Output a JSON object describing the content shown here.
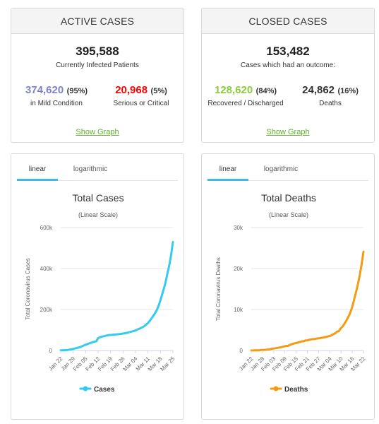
{
  "active": {
    "header": "ACTIVE CASES",
    "total": "395,588",
    "total_label": "Currently Infected Patients",
    "mild_value": "374,620",
    "mild_pct": "95%",
    "mild_label": "in Mild Condition",
    "serious_value": "20,968",
    "serious_pct": "5%",
    "serious_label": "Serious or Critical",
    "link": "Show Graph",
    "colors": {
      "mild": "#8080cc",
      "serious": "#ff0000"
    }
  },
  "closed": {
    "header": "CLOSED CASES",
    "total": "153,482",
    "total_label": "Cases which had an outcome:",
    "recovered_value": "128,620",
    "recovered_pct": "84%",
    "recovered_label": "Recovered / Discharged",
    "deaths_value": "24,862",
    "deaths_pct": "16%",
    "deaths_label": "Deaths",
    "link": "Show Graph",
    "colors": {
      "recovered": "#8acc3a",
      "deaths": "#333333"
    }
  },
  "cases_graph": {
    "tabs": [
      "linear",
      "logarithmic"
    ],
    "active_tab": "linear"
  },
  "deaths_graph": {
    "tabs": [
      "linear",
      "logarithmic"
    ],
    "active_tab": "linear"
  },
  "chart_data": [
    {
      "type": "line",
      "title": "Total Cases",
      "subtitle": "(Linear Scale)",
      "ylabel": "Total Coronavirus Cases",
      "xlabel": "",
      "ylim": [
        0,
        600000
      ],
      "yticks": [
        0,
        200000,
        400000,
        600000
      ],
      "ytick_labels": [
        "0",
        "200k",
        "400k",
        "600k"
      ],
      "x_tick_labels": [
        "Jan 22",
        "Jan 29",
        "Feb 05",
        "Feb 12",
        "Feb 19",
        "Feb 26",
        "Mar 04",
        "Mar 11",
        "Mar 18",
        "Mar 25"
      ],
      "legend_position": "bottom",
      "grid": true,
      "color": "#33ccee",
      "series": [
        {
          "name": "Cases",
          "values": [
            580,
            845,
            1320,
            2010,
            2800,
            4600,
            6060,
            7820,
            9830,
            11950,
            14560,
            17390,
            20630,
            24550,
            28280,
            31440,
            34880,
            37560,
            40550,
            43110,
            45180,
            60380,
            64570,
            67110,
            69320,
            71330,
            73330,
            75180,
            75700,
            76680,
            77660,
            78450,
            79440,
            80370,
            81410,
            82740,
            84120,
            86000,
            88370,
            90310,
            92840,
            95120,
            98000,
            102000,
            106000,
            109800,
            114300,
            118900,
            126700,
            134100,
            145000,
            156400,
            169000,
            182400,
            198200,
            218800,
            245000,
            275500,
            304900,
            337500,
            378700,
            418000,
            467600,
            529600
          ]
        }
      ]
    },
    {
      "type": "line",
      "title": "Total Deaths",
      "subtitle": "(Linear Scale)",
      "ylabel": "Total Coronavirus Deaths",
      "xlabel": "",
      "ylim": [
        0,
        30000
      ],
      "yticks": [
        0,
        10000,
        20000,
        30000
      ],
      "ytick_labels": [
        "0",
        "10k",
        "20k",
        "30k"
      ],
      "x_tick_labels": [
        "Jan 22",
        "Jan 28",
        "Feb 03",
        "Feb 09",
        "Feb 15",
        "Feb 21",
        "Feb 27",
        "Mar 04",
        "Mar 10",
        "Mar 16",
        "Mar 22"
      ],
      "legend_position": "bottom",
      "grid": true,
      "color": "#f39c12",
      "series": [
        {
          "name": "Deaths",
          "values": [
            17,
            18,
            26,
            42,
            56,
            82,
            131,
            133,
            171,
            213,
            259,
            362,
            426,
            492,
            564,
            634,
            719,
            806,
            906,
            1013,
            1113,
            1118,
            1371,
            1523,
            1666,
            1770,
            1868,
            2007,
            2122,
            2247,
            2251,
            2458,
            2469,
            2629,
            2708,
            2770,
            2814,
            2872,
            2941,
            2996,
            3085,
            3160,
            3254,
            3348,
            3460,
            3558,
            3803,
            3996,
            4262,
            4615,
            4720,
            5404,
            5819,
            6440,
            7126,
            7905,
            8733,
            9867,
            11299,
            13017,
            14647,
            16505,
            18613,
            21181,
            24113
          ]
        }
      ]
    }
  ]
}
